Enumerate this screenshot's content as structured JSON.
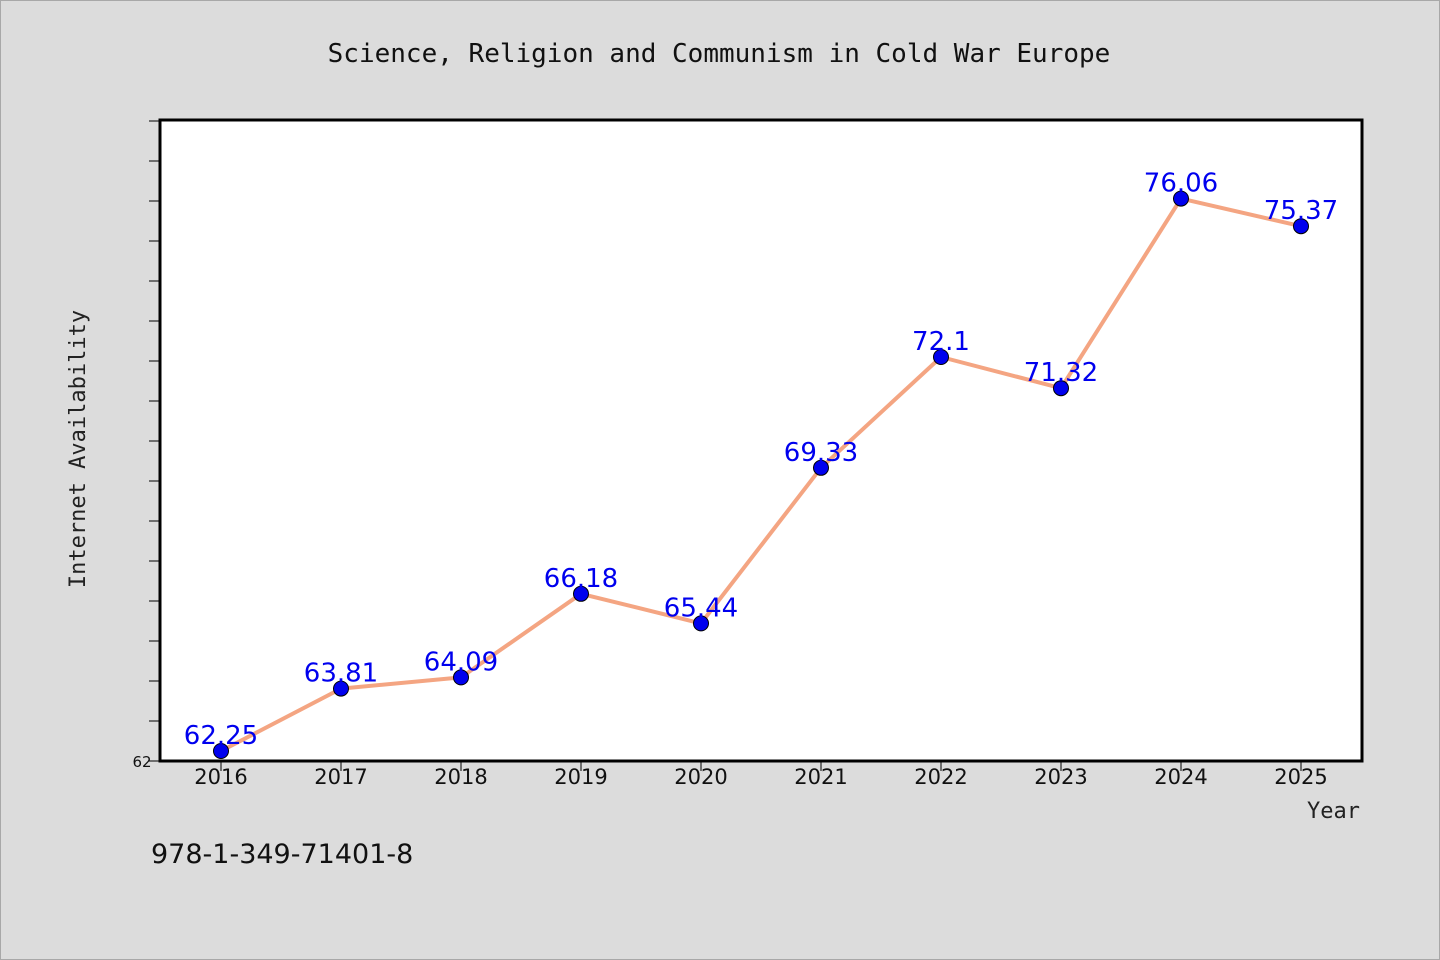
{
  "chart_data": {
    "type": "line",
    "title": "Science, Religion and Communism in Cold War Europe",
    "xlabel": "Year",
    "ylabel": "Internet Availability",
    "categories": [
      "2016",
      "2017",
      "2018",
      "2019",
      "2020",
      "2021",
      "2022",
      "2023",
      "2024",
      "2025"
    ],
    "series": [
      {
        "values": [
          62.25,
          63.81,
          64.09,
          66.18,
          65.44,
          69.33,
          72.1,
          71.32,
          76.06,
          75.37
        ],
        "labels": [
          "62.25",
          "63.81",
          "64.09",
          "66.18",
          "65.44",
          "69.33",
          "72.1",
          "71.32",
          "76.06",
          "75.37"
        ],
        "line_color": "#f4a582",
        "marker_color": "#0000ee",
        "label_color": "#0000ee"
      }
    ],
    "ylim": [
      62,
      78
    ],
    "y_tick_labels": [
      "62"
    ],
    "grid": false,
    "legend": "none"
  },
  "footnote": "978-1-349-71401-8",
  "colors": {
    "background": "#dcdcdc",
    "plot_background": "#ffffff",
    "axis": "#000000"
  }
}
